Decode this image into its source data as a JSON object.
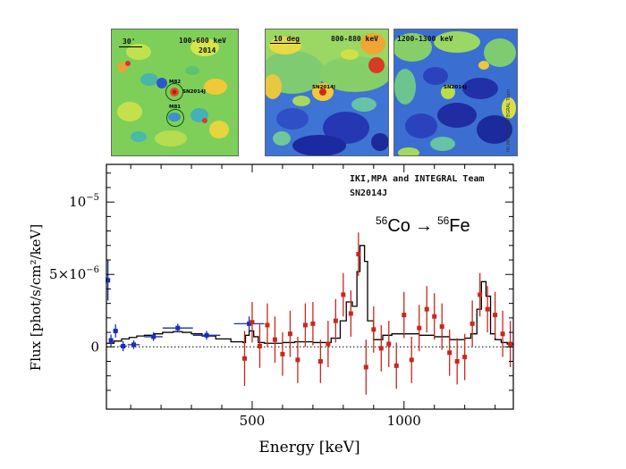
{
  "maps": [
    {
      "band_label": "100-600 keV",
      "year_label": "2014",
      "scale_label": "30'",
      "source_labels": [
        "M82",
        "SN2014J",
        "M81"
      ]
    },
    {
      "band_label": "800-880 keV",
      "scale_label": "10 deg",
      "source_labels": [
        "SN2014J"
      ]
    },
    {
      "band_label": "1200-1300 keV",
      "source_labels": [
        "SN2014J"
      ],
      "credit": "IKI,MPA and INTEGRAL Team"
    }
  ],
  "chart_data": {
    "type": "scatter",
    "team_label": "IKI,MPA and INTEGRAL Team",
    "object_label": "SN2014J",
    "decay_label": {
      "parent_mass": "56",
      "parent": "Co",
      "arrow": "→",
      "daughter_mass": "56",
      "daughter": "Fe"
    },
    "xlabel": "Energy [keV]",
    "ylabel": "Flux [phot/s/cm²/keV]",
    "xlim": [
      20,
      1360
    ],
    "ylim": [
      -4.3e-06,
      1.26e-05
    ],
    "x_ticks": [
      {
        "value": 500,
        "label": "500"
      },
      {
        "value": 1000,
        "label": "1000"
      }
    ],
    "y_ticks": [
      {
        "value": 0,
        "label": "0",
        "base": "",
        "exp": ""
      },
      {
        "value": 5e-06,
        "label": "5×10",
        "base": "5×10",
        "exp": "−6"
      },
      {
        "value": 1e-05,
        "label": "10",
        "base": "10",
        "exp": "−5"
      }
    ],
    "colors": {
      "low_energy": "#1a2fb5",
      "high_energy": "#c8281e",
      "model": "#000000",
      "frame": "#000000"
    },
    "series": [
      {
        "name": "",
        "color": "#1a2fb5",
        "points": [
          {
            "x": 25,
            "y": 4.6e-06,
            "xerr": 5,
            "yerr": 1.4e-06
          },
          {
            "x": 35,
            "y": 4.5e-07,
            "xerr": 5,
            "yerr": 4e-07
          },
          {
            "x": 50,
            "y": 1.1e-06,
            "xerr": 8,
            "yerr": 4.5e-07
          },
          {
            "x": 75,
            "y": 5e-08,
            "xerr": 12,
            "yerr": 3.5e-07
          },
          {
            "x": 110,
            "y": 1.5e-07,
            "xerr": 20,
            "yerr": 3e-07
          },
          {
            "x": 175,
            "y": 7e-07,
            "xerr": 30,
            "yerr": 3e-07
          },
          {
            "x": 255,
            "y": 1.3e-06,
            "xerr": 50,
            "yerr": 3e-07
          },
          {
            "x": 350,
            "y": 8e-07,
            "xerr": 45,
            "yerr": 3e-07
          },
          {
            "x": 490,
            "y": 1.6e-06,
            "xerr": 50,
            "yerr": 5e-07
          }
        ]
      },
      {
        "name": "",
        "color": "#c8281e",
        "points": [
          {
            "x": 475,
            "y": -8e-07,
            "yerr": 1.9e-06
          },
          {
            "x": 500,
            "y": 1.7e-06,
            "yerr": 1.4e-06
          },
          {
            "x": 525,
            "y": 5e-08,
            "yerr": 1.5e-06
          },
          {
            "x": 550,
            "y": 1.5e-06,
            "yerr": 1.5e-06
          },
          {
            "x": 575,
            "y": 5e-07,
            "yerr": 1.6e-06
          },
          {
            "x": 600,
            "y": -5e-07,
            "yerr": 1.5e-06
          },
          {
            "x": 625,
            "y": 9e-07,
            "yerr": 1.6e-06
          },
          {
            "x": 650,
            "y": -9e-07,
            "yerr": 1.6e-06
          },
          {
            "x": 675,
            "y": 1.5e-06,
            "yerr": 1.5e-06
          },
          {
            "x": 700,
            "y": 1.6e-06,
            "yerr": 1.5e-06
          },
          {
            "x": 725,
            "y": -1e-06,
            "yerr": 1.5e-06
          },
          {
            "x": 750,
            "y": 2e-07,
            "yerr": 1.6e-06
          },
          {
            "x": 775,
            "y": 1.8e-06,
            "yerr": 1.5e-06
          },
          {
            "x": 800,
            "y": 3.6e-06,
            "yerr": 1.5e-06
          },
          {
            "x": 825,
            "y": 2.3e-06,
            "yerr": 1.6e-06
          },
          {
            "x": 850,
            "y": 6.4e-06,
            "yerr": 1.5e-06
          },
          {
            "x": 875,
            "y": -1.4e-06,
            "yerr": 1.9e-06
          },
          {
            "x": 900,
            "y": 1.2e-06,
            "yerr": 1.6e-06
          },
          {
            "x": 925,
            "y": -1e-07,
            "yerr": 1.6e-06
          },
          {
            "x": 950,
            "y": 2e-07,
            "yerr": 1.6e-06
          },
          {
            "x": 975,
            "y": -1.3e-06,
            "yerr": 1.6e-06
          },
          {
            "x": 1000,
            "y": 2.2e-06,
            "yerr": 1.6e-06
          },
          {
            "x": 1025,
            "y": -9e-07,
            "yerr": 1.6e-06
          },
          {
            "x": 1050,
            "y": 1.3e-06,
            "yerr": 1.6e-06
          },
          {
            "x": 1075,
            "y": 2.6e-06,
            "yerr": 1.6e-06
          },
          {
            "x": 1100,
            "y": 2.1e-06,
            "yerr": 1.6e-06
          },
          {
            "x": 1125,
            "y": 1.4e-06,
            "yerr": 1.6e-06
          },
          {
            "x": 1150,
            "y": -4e-07,
            "yerr": 1.6e-06
          },
          {
            "x": 1175,
            "y": -1e-06,
            "yerr": 1.6e-06
          },
          {
            "x": 1200,
            "y": -7e-07,
            "yerr": 1.6e-06
          },
          {
            "x": 1225,
            "y": 1.6e-06,
            "yerr": 1.6e-06
          },
          {
            "x": 1250,
            "y": 3.6e-06,
            "yerr": 1.5e-06
          },
          {
            "x": 1275,
            "y": 2.6e-06,
            "yerr": 1.6e-06
          },
          {
            "x": 1300,
            "y": 2.2e-06,
            "yerr": 1.6e-06
          },
          {
            "x": 1325,
            "y": 9e-07,
            "yerr": 1.6e-06
          },
          {
            "x": 1350,
            "y": 2e-07,
            "yerr": 1.6e-06
          }
        ]
      }
    ],
    "model": {
      "name": "",
      "x": [
        20,
        45,
        70,
        95,
        120,
        145,
        175,
        205,
        240,
        270,
        300,
        335,
        380,
        430,
        470,
        478,
        490,
        505,
        520,
        540,
        600,
        640,
        700,
        760,
        790,
        810,
        830,
        845,
        855,
        870,
        880,
        900,
        930,
        960,
        1000,
        1050,
        1100,
        1150,
        1200,
        1220,
        1240,
        1255,
        1270,
        1285,
        1300,
        1320,
        1340,
        1360
      ],
      "y": [
        2.5e-07,
        4e-07,
        5.5e-07,
        6.5e-07,
        7.5e-07,
        8e-07,
        9e-07,
        1e-06,
        1.05e-06,
        1e-06,
        9e-07,
        7.5e-07,
        5.5e-07,
        3.5e-07,
        3e-07,
        8e-07,
        1.1e-06,
        7e-07,
        3e-07,
        2.5e-07,
        3e-07,
        3.5e-07,
        3e-07,
        6e-07,
        1.8e-06,
        3.1e-06,
        2.8e-06,
        5.2e-06,
        7e-06,
        5.9e-06,
        1.8e-06,
        5e-07,
        8e-07,
        9e-07,
        9e-07,
        8e-07,
        7e-07,
        5e-07,
        6e-07,
        9e-07,
        2.6e-06,
        4.5e-06,
        3.5e-06,
        9e-07,
        5e-07,
        3e-07,
        2e-07,
        1e-07
      ]
    }
  }
}
